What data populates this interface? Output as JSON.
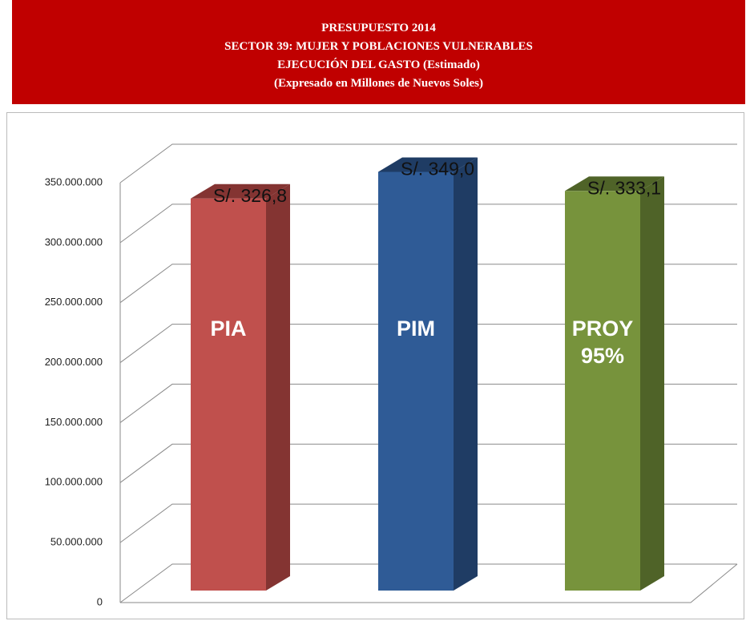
{
  "chart_data": {
    "type": "bar3d",
    "title": "PRESUPUESTO 2014",
    "subtitle": [
      "SECTOR 39: MUJER Y POBLACIONES VULNERABLES",
      "EJECUCIÓN DEL GASTO (Estimado)",
      "(Expresado en Millones de Nuevos Soles)"
    ],
    "categories": [
      "PIA",
      "PIM",
      "PROY 95%"
    ],
    "values": [
      326800000,
      349000000,
      333100000
    ],
    "value_labels": [
      "S/. 326,8",
      "S/. 349,0",
      "S/. 333,1"
    ],
    "colors": [
      "#c0504d",
      "#2f5b96",
      "#77933c"
    ],
    "side_colors": [
      "#843432",
      "#1f3c64",
      "#4f6328"
    ],
    "ylim": [
      0,
      350000000
    ],
    "yticks": [
      0,
      {
        "value": 50000000,
        "label": "50.000.000"
      },
      {
        "value": 100000000,
        "label": "100.000.000"
      },
      {
        "value": 150000000,
        "label": "150.000.000"
      },
      {
        "value": 200000000,
        "label": "200.000.000"
      },
      {
        "value": 250000000,
        "label": "250.000.000"
      },
      {
        "value": 300000000,
        "label": "300.000.000"
      },
      {
        "value": 350000000,
        "label": "350.000.000"
      }
    ],
    "grid": true
  }
}
